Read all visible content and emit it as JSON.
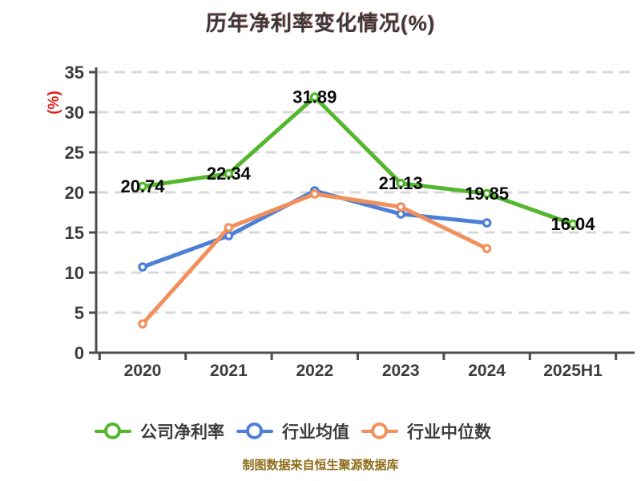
{
  "title": "历年净利率变化情况(%)",
  "y_axis_unit_label": "(%)",
  "footer_note": "制图数据来自恒生聚源数据库",
  "chart_data": {
    "type": "line",
    "title": "历年净利率变化情况(%)",
    "categories": [
      "2020",
      "2021",
      "2022",
      "2023",
      "2024",
      "2025H1"
    ],
    "y_ticks": [
      0,
      5,
      10,
      15,
      20,
      25,
      30,
      35
    ],
    "ylim": [
      0,
      35
    ],
    "grid": "horizontal-dashed",
    "legend_position": "bottom",
    "series": [
      {
        "name": "公司净利率",
        "color": "#54b62d",
        "values": [
          20.74,
          22.34,
          31.89,
          21.13,
          19.85,
          16.04
        ],
        "labels": [
          "20.74",
          "22.34",
          "31.89",
          "21.13",
          "19.85",
          "16.04"
        ]
      },
      {
        "name": "行业均值",
        "color": "#4d7fd6",
        "values": [
          10.7,
          14.6,
          20.2,
          17.3,
          16.2,
          null
        ],
        "labels": null
      },
      {
        "name": "行业中位数",
        "color": "#f2905c",
        "values": [
          3.6,
          15.6,
          19.8,
          18.2,
          13.0,
          null
        ],
        "labels": null
      }
    ],
    "style": {
      "grid_color": "#d8d8d8",
      "axis_color": "#4d4d4d",
      "tick_label_color": "#3c3c3e",
      "value_label_color": "#0b0b0b",
      "unit_label_color": "#d9251c",
      "title_color": "#39393b",
      "footer_color": "#8e6c1a"
    }
  }
}
